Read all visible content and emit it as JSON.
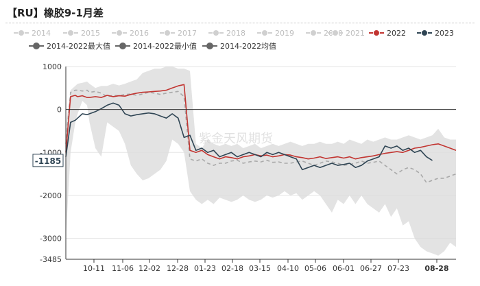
{
  "title": "【RU】橡胶9-1月差",
  "watermark": "紫金天风期货",
  "legend": [
    {
      "label": "2014",
      "color": "#d0d0d0",
      "active": false
    },
    {
      "label": "2015",
      "color": "#d0d0d0",
      "active": false
    },
    {
      "label": "2016",
      "color": "#d0d0d0",
      "active": false
    },
    {
      "label": "2017",
      "color": "#d0d0d0",
      "active": false
    },
    {
      "label": "2018",
      "color": "#d0d0d0",
      "active": false
    },
    {
      "label": "2019",
      "color": "#d0d0d0",
      "active": false
    },
    {
      "label": "2020",
      "color": "#d0d0d0",
      "active": false
    },
    {
      "label": "2021",
      "color": "#d0d0d0",
      "active": false
    },
    {
      "label": "2022",
      "color": "#c23531",
      "active": true
    },
    {
      "label": "2023",
      "color": "#2f4554",
      "active": true
    },
    {
      "label": "2014-2022最大值",
      "color": "#666666",
      "active": true
    },
    {
      "label": "2014-2022最小值",
      "color": "#666666",
      "active": true
    },
    {
      "label": "2014-2022均值",
      "color": "#666666",
      "active": true
    }
  ],
  "chart_data": {
    "type": "line",
    "title": "【RU】橡胶9-1月差",
    "x_tick_labels": [
      "10-11",
      "11-06",
      "12-02",
      "12-28",
      "01-23",
      "02-18",
      "03-15",
      "04-10",
      "05-06",
      "06-01",
      "06-27",
      "07-23",
      "08-28"
    ],
    "y_tick_labels": [
      "1000",
      "0",
      "-1000",
      "-2000",
      "-3000",
      "-3485"
    ],
    "ylim": [
      -3485,
      1000
    ],
    "current_value_label": "-1185",
    "series": [
      {
        "name": "2014-2022最大值",
        "style": "band-upper",
        "x": [
          0,
          4,
          8,
          10,
          14,
          18,
          20,
          25,
          30,
          35,
          40,
          45,
          50,
          55,
          60,
          65,
          70,
          75,
          80,
          85,
          90,
          95,
          100,
          105,
          110,
          115,
          120,
          125,
          130,
          135,
          140,
          145,
          150,
          155,
          160,
          165,
          170,
          175,
          180,
          185,
          190,
          195,
          200,
          205,
          210,
          215,
          220,
          225,
          230,
          235,
          240,
          245,
          250,
          255,
          260,
          265,
          270,
          275,
          280,
          285,
          290,
          295,
          300,
          305,
          310,
          315,
          320,
          325,
          330
        ],
        "y": [
          -400,
          450,
          550,
          600,
          620,
          650,
          600,
          500,
          550,
          550,
          600,
          560,
          600,
          650,
          700,
          850,
          900,
          950,
          950,
          1000,
          1000,
          950,
          950,
          900,
          -800,
          -900,
          -700,
          -800,
          -850,
          -800,
          -850,
          -800,
          -900,
          -850,
          -800,
          -900,
          -850,
          -800,
          -850,
          -800,
          -750,
          -800,
          -850,
          -800,
          -800,
          -750,
          -800,
          -800,
          -750,
          -800,
          -700,
          -750,
          -800,
          -700,
          -750,
          -700,
          -650,
          -700,
          -700,
          -650,
          -600,
          -650,
          -700,
          -650,
          -600,
          -450,
          -650,
          -700,
          -700
        ]
      },
      {
        "name": "2014-2022最小值",
        "style": "band-lower",
        "x": [
          0,
          4,
          8,
          10,
          14,
          18,
          20,
          25,
          30,
          35,
          40,
          45,
          50,
          55,
          60,
          65,
          70,
          75,
          80,
          85,
          90,
          95,
          100,
          105,
          110,
          115,
          120,
          125,
          130,
          135,
          140,
          145,
          150,
          155,
          160,
          165,
          170,
          175,
          180,
          185,
          190,
          195,
          200,
          205,
          210,
          215,
          220,
          225,
          230,
          235,
          240,
          245,
          250,
          255,
          260,
          265,
          270,
          275,
          280,
          285,
          290,
          295,
          300,
          305,
          310,
          315,
          320,
          325,
          330
        ],
        "y": [
          -3000,
          -1000,
          -300,
          -100,
          200,
          100,
          -300,
          -900,
          -1100,
          -300,
          -400,
          -500,
          -800,
          -1300,
          -1500,
          -1650,
          -1600,
          -1500,
          -1400,
          -1200,
          -700,
          -800,
          -1000,
          -1900,
          -2100,
          -2200,
          -2100,
          -2200,
          -2050,
          -2100,
          -2150,
          -2100,
          -2000,
          -2100,
          -2150,
          -2100,
          -2000,
          -2050,
          -2000,
          -1900,
          -2000,
          -1950,
          -2100,
          -2000,
          -1900,
          -2000,
          -2200,
          -2400,
          -2100,
          -2200,
          -2000,
          -2200,
          -2000,
          -2200,
          -2300,
          -2400,
          -2200,
          -2500,
          -2300,
          -2700,
          -2600,
          -3000,
          -3200,
          -3300,
          -3350,
          -3400,
          -3300,
          -3100,
          -3200
        ]
      },
      {
        "name": "2014-2022均值",
        "color": "#a9a9a9",
        "dash": true,
        "x": [
          0,
          4,
          8,
          10,
          14,
          18,
          20,
          25,
          30,
          35,
          40,
          45,
          50,
          55,
          60,
          65,
          70,
          75,
          80,
          85,
          90,
          95,
          100,
          105,
          110,
          115,
          120,
          125,
          130,
          135,
          140,
          145,
          150,
          155,
          160,
          165,
          170,
          175,
          180,
          185,
          190,
          195,
          200,
          205,
          210,
          215,
          220,
          225,
          230,
          235,
          240,
          245,
          250,
          255,
          260,
          265,
          270,
          275,
          280,
          285,
          290,
          295,
          300,
          305,
          310,
          315,
          320,
          325,
          330
        ],
        "y": [
          -800,
          400,
          450,
          450,
          430,
          450,
          400,
          420,
          380,
          300,
          330,
          320,
          350,
          360,
          330,
          360,
          400,
          380,
          350,
          380,
          400,
          420,
          300,
          -1150,
          -1200,
          -1150,
          -1250,
          -1300,
          -1250,
          -1250,
          -1200,
          -1180,
          -1250,
          -1220,
          -1200,
          -1220,
          -1180,
          -1230,
          -1220,
          -1250,
          -1250,
          -1220,
          -1200,
          -1250,
          -1300,
          -1250,
          -1200,
          -1220,
          -1250,
          -1300,
          -1280,
          -1250,
          -1200,
          -1250,
          -1230,
          -1200,
          -1300,
          -1400,
          -1500,
          -1400,
          -1350,
          -1400,
          -1500,
          -1700,
          -1650,
          -1600,
          -1600,
          -1550,
          -1500
        ]
      },
      {
        "name": "2022",
        "color": "#c23531",
        "x": [
          0,
          4,
          8,
          10,
          14,
          18,
          20,
          25,
          30,
          35,
          40,
          45,
          50,
          55,
          60,
          65,
          70,
          75,
          80,
          85,
          90,
          95,
          100,
          105,
          110,
          115,
          120,
          125,
          130,
          135,
          140,
          145,
          150,
          155,
          160,
          165,
          170,
          175,
          180,
          185,
          190,
          195,
          200,
          205,
          210,
          215,
          220,
          225,
          230,
          235,
          240,
          245,
          250,
          255,
          260,
          265,
          270,
          275,
          280,
          285,
          290,
          295,
          300,
          305,
          310,
          315,
          320,
          325,
          330
        ],
        "y": [
          -1000,
          300,
          330,
          300,
          320,
          280,
          280,
          300,
          280,
          330,
          300,
          320,
          310,
          350,
          380,
          400,
          410,
          420,
          430,
          450,
          500,
          550,
          580,
          -950,
          -1000,
          -950,
          -1050,
          -1100,
          -1150,
          -1100,
          -1120,
          -1150,
          -1100,
          -1080,
          -1050,
          -1080,
          -1060,
          -1100,
          -1080,
          -1050,
          -1060,
          -1100,
          -1120,
          -1150,
          -1130,
          -1100,
          -1140,
          -1120,
          -1100,
          -1130,
          -1100,
          -1150,
          -1120,
          -1100,
          -1080,
          -1050,
          -1020,
          -1000,
          -980,
          -1000,
          -950,
          -900,
          -880,
          -850,
          -820,
          -800,
          -850,
          -900,
          -950
        ]
      },
      {
        "name": "2023",
        "color": "#2f4554",
        "x": [
          0,
          4,
          8,
          10,
          14,
          18,
          20,
          25,
          30,
          35,
          40,
          45,
          50,
          55,
          60,
          65,
          70,
          75,
          80,
          85,
          90,
          95,
          100,
          105,
          110,
          115,
          120,
          125,
          130,
          135,
          140,
          145,
          150,
          155,
          160,
          165,
          170,
          175,
          180,
          185,
          190,
          195,
          200,
          205,
          210,
          215,
          220,
          225,
          230,
          235,
          240,
          245,
          250,
          255,
          260,
          265,
          270,
          275,
          280,
          285,
          290,
          295,
          300,
          305,
          310
        ],
        "y": [
          -1100,
          -300,
          -250,
          -200,
          -100,
          -120,
          -100,
          -50,
          20,
          100,
          150,
          100,
          -100,
          -150,
          -120,
          -100,
          -80,
          -100,
          -150,
          -200,
          -100,
          -200,
          -650,
          -600,
          -950,
          -900,
          -1000,
          -950,
          -1100,
          -1050,
          -1000,
          -1100,
          -1050,
          -1000,
          -1050,
          -1100,
          -1000,
          -1050,
          -1000,
          -1050,
          -1100,
          -1150,
          -1400,
          -1350,
          -1300,
          -1350,
          -1300,
          -1250,
          -1300,
          -1280,
          -1250,
          -1350,
          -1300,
          -1200,
          -1150,
          -1100,
          -850,
          -900,
          -850,
          -950,
          -900,
          -1000,
          -950,
          -1100,
          -1185
        ]
      }
    ]
  }
}
